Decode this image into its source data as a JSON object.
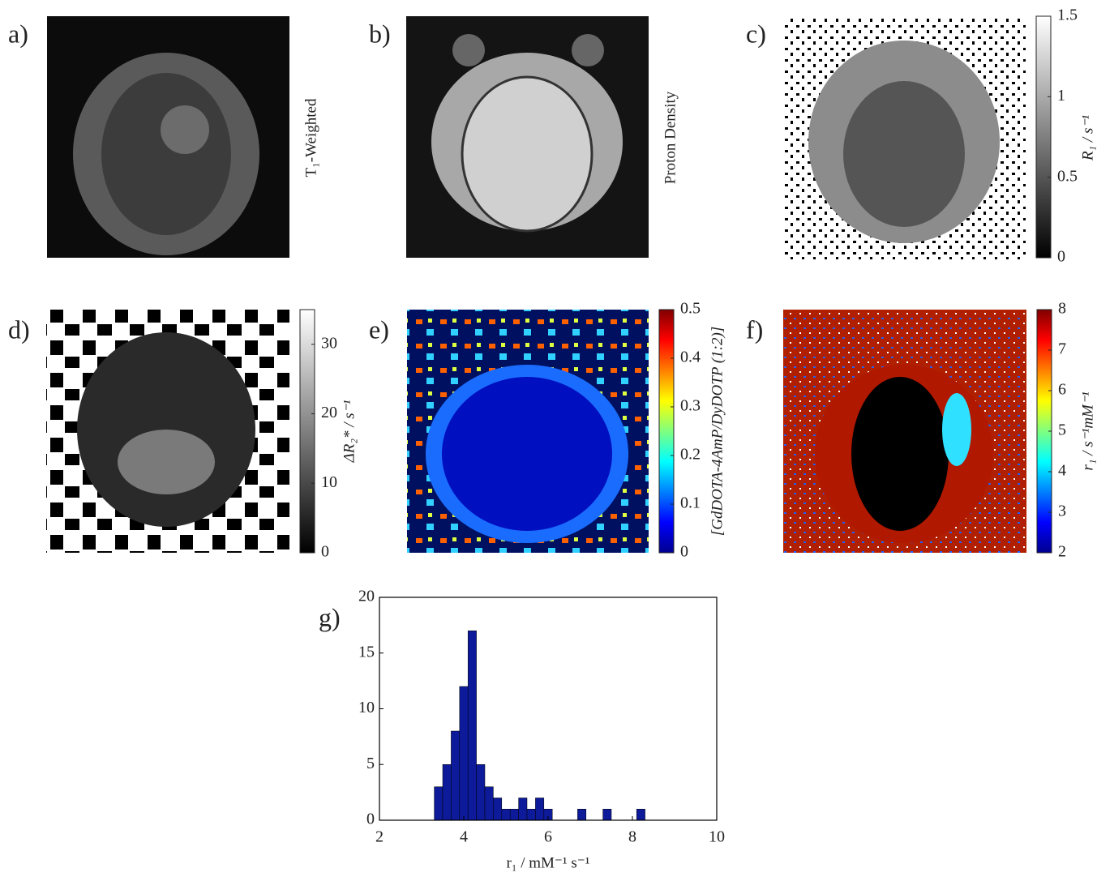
{
  "figure": {
    "panels": [
      {
        "label": "a)",
        "caption": "T₁-Weighted"
      },
      {
        "label": "b)",
        "caption": "Proton Density"
      },
      {
        "label": "c)",
        "colorbar": {
          "label": "R₁ / s⁻¹",
          "colormap": "gray",
          "lim": [
            0,
            1.5
          ],
          "ticks": [
            0,
            0.5,
            1,
            1.5
          ]
        }
      },
      {
        "label": "d)",
        "colorbar": {
          "label": "ΔR₂* / s⁻¹",
          "colormap": "gray",
          "lim": [
            0,
            35
          ],
          "ticks": [
            0,
            10,
            20,
            30
          ]
        }
      },
      {
        "label": "e)",
        "colorbar": {
          "label": "[GdDOTA-4AmP/DyDOTP (1:2)]",
          "colormap": "jet",
          "lim": [
            0,
            0.5
          ],
          "ticks": [
            0,
            0.1,
            0.2,
            0.3,
            0.4,
            0.5
          ]
        }
      },
      {
        "label": "f)",
        "colorbar": {
          "label": "r₁ / s⁻¹mM⁻¹",
          "colormap": "jet",
          "lim": [
            2,
            8
          ],
          "ticks": [
            2,
            3,
            4,
            5,
            6,
            7,
            8
          ]
        }
      }
    ]
  },
  "chart_data": {
    "type": "histogram",
    "label": "g)",
    "x_label": "r₁ / mM⁻¹ s⁻¹",
    "color": "#0d1a9a",
    "bins": [
      3.3,
      3.5,
      3.7,
      3.9,
      4.1,
      4.3,
      4.5,
      4.7,
      4.9,
      5.1,
      5.3,
      5.5,
      5.7,
      5.9,
      6.1,
      6.3,
      6.5,
      6.7,
      6.9,
      7.1,
      7.3,
      7.5,
      7.7,
      7.9,
      8.1,
      8.3
    ],
    "counts": [
      3,
      5,
      8,
      12,
      17,
      5,
      3,
      2,
      1,
      1,
      2,
      1,
      2,
      1,
      0,
      0,
      0,
      1,
      0,
      0,
      1,
      0,
      0,
      0,
      1
    ],
    "xlim": [
      2,
      10
    ],
    "xticks": [
      2,
      4,
      6,
      8,
      10
    ],
    "ylim": [
      0,
      20
    ],
    "yticks": [
      0,
      5,
      10,
      15,
      20
    ]
  }
}
